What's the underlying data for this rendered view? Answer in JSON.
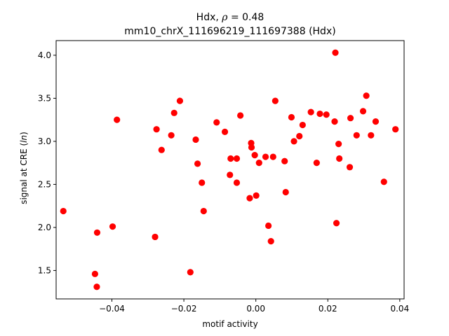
{
  "chart_data": {
    "type": "scatter",
    "title_line1_prefix": "Hdx, ",
    "title_line1_rho": "ρ",
    "title_line1_suffix": " = 0.48",
    "title_line2": "mm10_chrX_111696219_111697388 (Hdx)",
    "xlabel": "motif activity",
    "ylabel_prefix": "signal at CRE (",
    "ylabel_italic": "ln",
    "ylabel_suffix": ")",
    "xlim": [
      -0.0555,
      0.0412
    ],
    "ylim": [
      1.17,
      4.17
    ],
    "xticks": [
      -0.04,
      -0.02,
      0.0,
      0.02,
      0.04
    ],
    "xtick_labels": [
      "−0.04",
      "−0.02",
      "0.00",
      "0.02",
      "0.04"
    ],
    "yticks": [
      1.5,
      2.0,
      2.5,
      3.0,
      3.5,
      4.0
    ],
    "ytick_labels": [
      "1.5",
      "2.0",
      "2.5",
      "3.0",
      "3.5",
      "4.0"
    ],
    "marker_color": "#ff0000",
    "x": [
      -0.0535,
      -0.0447,
      -0.0441,
      -0.0442,
      -0.0398,
      -0.0386,
      -0.028,
      -0.0276,
      -0.0262,
      -0.0235,
      -0.0227,
      -0.0211,
      -0.0182,
      -0.0167,
      -0.0162,
      -0.015,
      -0.0145,
      -0.0109,
      -0.0086,
      -0.0072,
      -0.007,
      -0.0053,
      -0.0053,
      -0.0043,
      -0.0017,
      -0.0013,
      -0.0012,
      -0.0003,
      0.0001,
      0.0009,
      0.0027,
      0.0035,
      0.0042,
      0.0048,
      0.0054,
      0.008,
      0.0083,
      0.0099,
      0.0106,
      0.0121,
      0.013,
      0.0153,
      0.0169,
      0.0178,
      0.0196,
      0.0219,
      0.0221,
      0.0224,
      0.023,
      0.0232,
      0.0261,
      0.0263,
      0.028,
      0.0298,
      0.0307,
      0.032,
      0.0333,
      0.0356,
      0.0388
    ],
    "y": [
      2.19,
      1.46,
      1.94,
      1.31,
      2.01,
      3.25,
      1.89,
      3.14,
      2.9,
      3.07,
      3.33,
      3.47,
      1.48,
      3.02,
      2.74,
      2.52,
      2.19,
      3.22,
      3.11,
      2.61,
      2.8,
      2.8,
      2.52,
      3.3,
      2.34,
      2.98,
      2.93,
      2.84,
      2.37,
      2.75,
      2.82,
      2.02,
      1.84,
      2.82,
      3.47,
      2.77,
      2.41,
      3.28,
      3.0,
      3.06,
      3.19,
      3.34,
      2.75,
      3.32,
      3.31,
      3.23,
      4.03,
      2.05,
      2.97,
      2.8,
      2.7,
      3.27,
      3.07,
      3.35,
      3.53,
      3.07,
      3.23,
      2.53,
      3.14
    ]
  }
}
